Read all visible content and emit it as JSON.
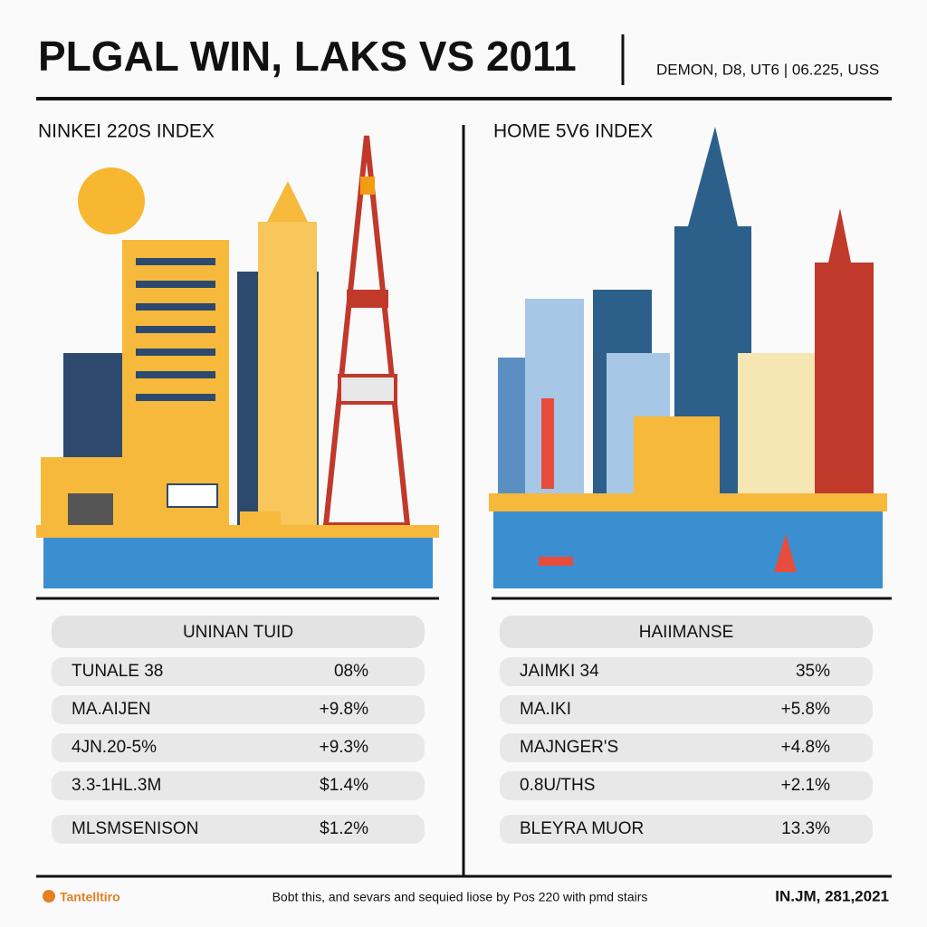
{
  "header": {
    "title": "PLGAL WIN, LAKS VS 2011",
    "subtitle": "DEMON, D8, UT6 | 06.225, USS"
  },
  "panels": [
    {
      "title": "NINKEI 220S INDEX",
      "table": {
        "header": "UNINAN TUID",
        "rows": [
          [
            "TUNALE 38",
            "08%"
          ],
          [
            "MA.AIJEN",
            "+9.8%"
          ],
          [
            "4JN.20-5%",
            "+9.3%"
          ],
          [
            "3.3-1HL.3M",
            "$1.4%"
          ],
          [
            "MLSMSENISON",
            "$1.2%"
          ]
        ]
      }
    },
    {
      "title": "HOME 5V6 INDEX",
      "table": {
        "header": "HAIIMANSE",
        "rows": [
          [
            "JAIMKI 34",
            "35%"
          ],
          [
            "MA.IKI",
            "+5.8%"
          ],
          [
            "MAJNGER'S",
            "+4.8%"
          ],
          [
            "0.8U/THS",
            "+2.1%"
          ],
          [
            "BLEYRA MUOR",
            "13.3%"
          ]
        ]
      }
    }
  ],
  "footer": {
    "logo": "Tantelltiro",
    "note": "Bobt this, and sevars and sequied liose by Pos 220 with pmd stairs",
    "date": "IN.JM, 281,2021"
  }
}
